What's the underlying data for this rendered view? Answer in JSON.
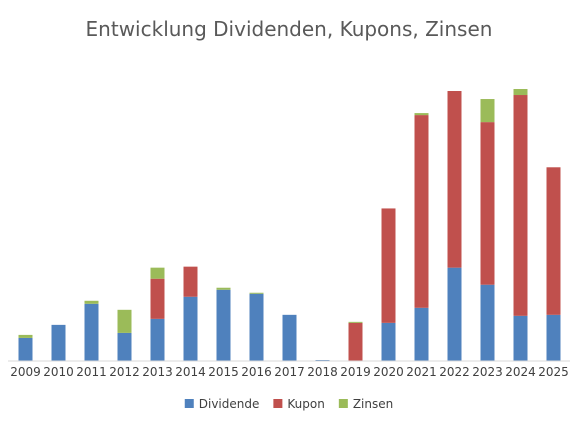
{
  "chart_data": {
    "type": "bar",
    "stacked": true,
    "title": "Entwicklung Dividenden, Kupons, Zinsen",
    "xlabel": "",
    "ylabel": "",
    "categories": [
      "2009",
      "2010",
      "2011",
      "2012",
      "2013",
      "2014",
      "2015",
      "2016",
      "2017",
      "2018",
      "2019",
      "2020",
      "2021",
      "2022",
      "2023",
      "2024",
      "2025"
    ],
    "ylim": [
      0,
      270
    ],
    "grid": false,
    "y_axis_visible": false,
    "legend": "bottom",
    "series": [
      {
        "name": "Dividende",
        "color": "#4f81bd",
        "values": [
          23,
          36,
          57,
          28,
          42,
          64,
          71,
          67,
          46,
          1,
          0,
          38,
          53,
          93,
          76,
          45,
          46
        ]
      },
      {
        "name": "Kupon",
        "color": "#c0504d",
        "values": [
          0,
          0,
          0,
          0,
          40,
          30,
          0,
          0,
          0,
          0,
          38,
          114,
          192,
          176,
          162,
          220,
          147
        ]
      },
      {
        "name": "Zinsen",
        "color": "#9bbb59",
        "values": [
          3,
          0,
          3,
          23,
          11,
          0,
          2,
          1,
          0,
          0,
          1,
          0,
          2,
          0,
          23,
          6,
          0
        ]
      }
    ]
  }
}
